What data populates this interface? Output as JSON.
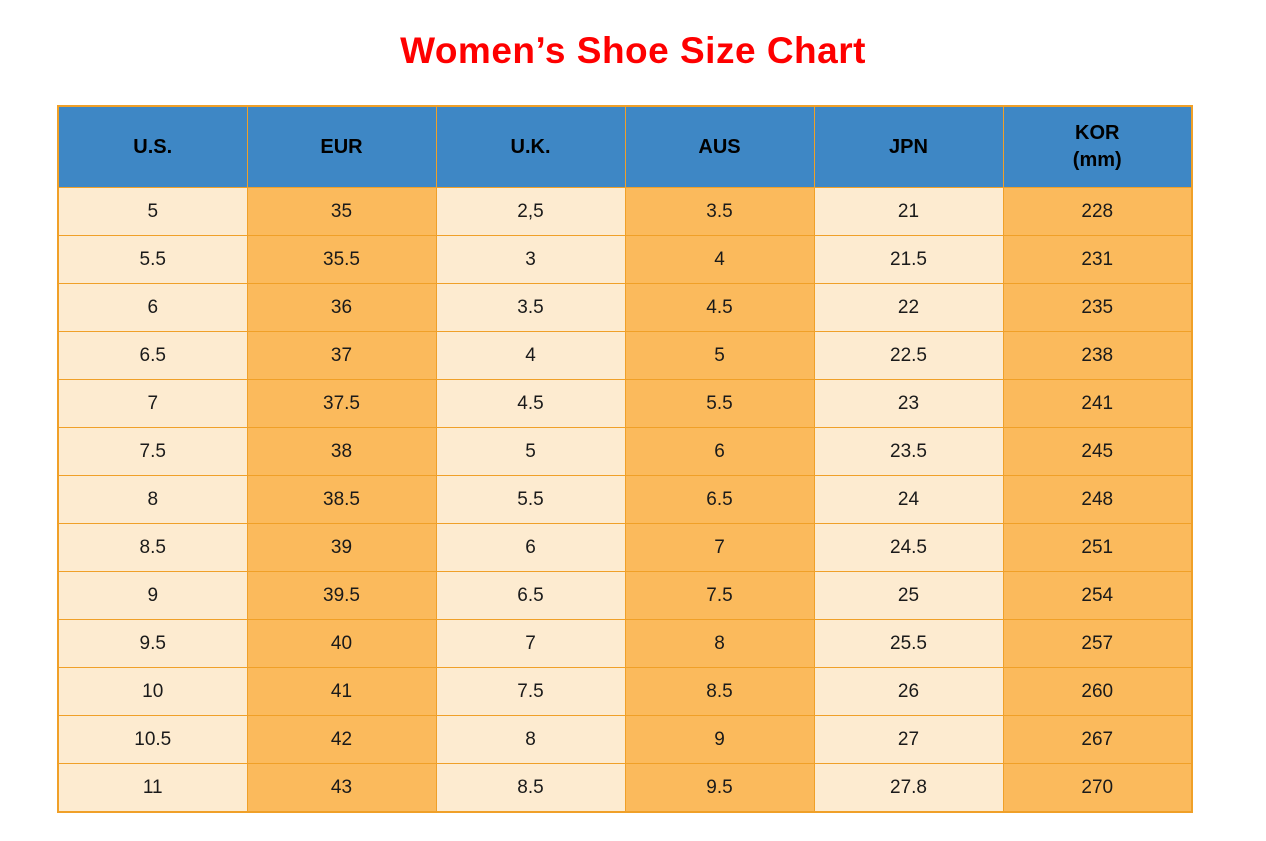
{
  "page": {
    "title": "Women’s Shoe Size Chart"
  },
  "colors": {
    "title_color": "#FE0000",
    "header_bg": "#3E87C5",
    "light_cell": "#FDEBD0",
    "orange_cell": "#FBBA5C",
    "border_color": "#F0A028",
    "text_color": "#1A1A1A"
  },
  "chart_data": {
    "type": "table",
    "title": "Women’s Shoe Size Chart",
    "columns": [
      "U.S.",
      "EUR",
      "U.K.",
      "AUS",
      "JPN",
      "KOR\n(mm)"
    ],
    "column_ids": [
      "us",
      "eur",
      "uk",
      "aus",
      "jpn",
      "kor"
    ],
    "column_styles": [
      "light",
      "orange",
      "light",
      "orange",
      "light",
      "orange"
    ],
    "rows": [
      [
        "5",
        "35",
        "2,5",
        "3.5",
        "21",
        "228"
      ],
      [
        "5.5",
        "35.5",
        "3",
        "4",
        "21.5",
        "231"
      ],
      [
        "6",
        "36",
        "3.5",
        "4.5",
        "22",
        "235"
      ],
      [
        "6.5",
        "37",
        "4",
        "5",
        "22.5",
        "238"
      ],
      [
        "7",
        "37.5",
        "4.5",
        "5.5",
        "23",
        "241"
      ],
      [
        "7.5",
        "38",
        "5",
        "6",
        "23.5",
        "245"
      ],
      [
        "8",
        "38.5",
        "5.5",
        "6.5",
        "24",
        "248"
      ],
      [
        "8.5",
        "39",
        "6",
        "7",
        "24.5",
        "251"
      ],
      [
        "9",
        "39.5",
        "6.5",
        "7.5",
        "25",
        "254"
      ],
      [
        "9.5",
        "40",
        "7",
        "8",
        "25.5",
        "257"
      ],
      [
        "10",
        "41",
        "7.5",
        "8.5",
        "26",
        "260"
      ],
      [
        "10.5",
        "42",
        "8",
        "9",
        "27",
        "267"
      ],
      [
        "11",
        "43",
        "8.5",
        "9.5",
        "27.8",
        "270"
      ]
    ]
  }
}
